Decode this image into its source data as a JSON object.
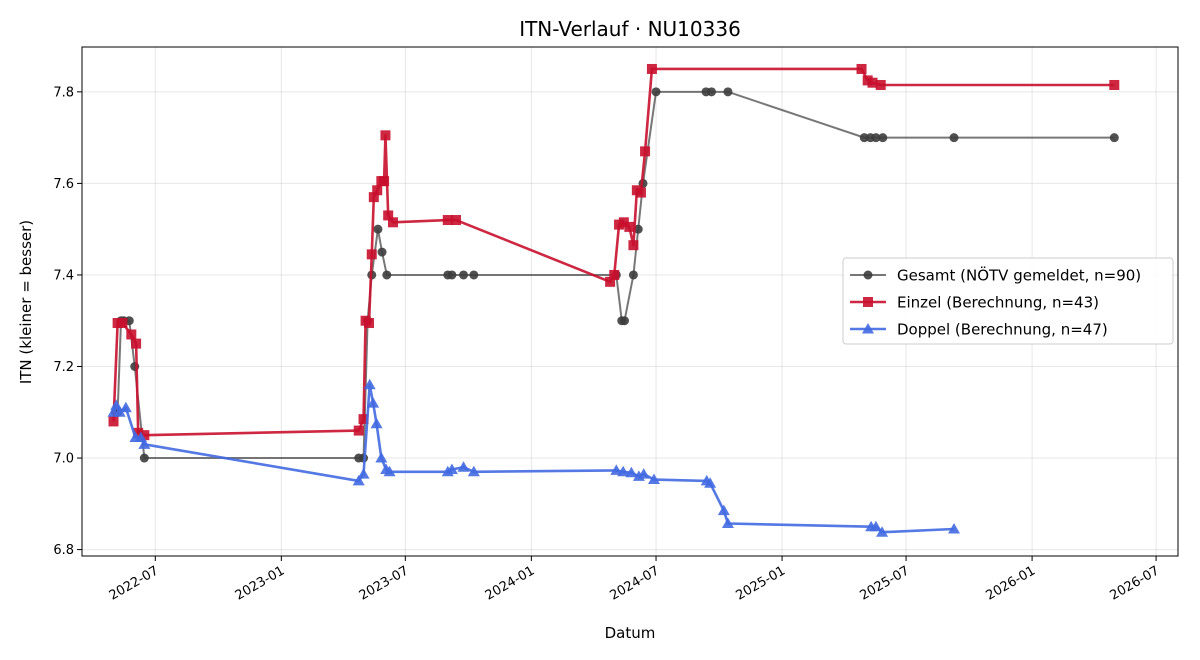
{
  "chart_data": {
    "type": "line",
    "title": "ITN-Verlauf · NU10336",
    "xlabel": "Datum",
    "ylabel": "ITN  (kleiner = besser)",
    "xlim": [
      "2022-03-16",
      "2026-08-02"
    ],
    "ylim": [
      6.786,
      7.898
    ],
    "x_ticks": [
      "2022-07",
      "2023-01",
      "2023-07",
      "2024-01",
      "2024-07",
      "2025-01",
      "2025-07",
      "2026-01",
      "2026-07"
    ],
    "y_ticks": [
      "6.8",
      "7.0",
      "7.2",
      "7.4",
      "7.6",
      "7.8"
    ],
    "grid": true,
    "legend_position": "center-right",
    "series": [
      {
        "name": "Gesamt (NÖTV gemeldet, n=90)",
        "color": "#3d3d3d",
        "marker": "circle",
        "points": [
          [
            "2022-05-04",
            7.1
          ],
          [
            "2022-05-07",
            7.1
          ],
          [
            "2022-05-12",
            7.3
          ],
          [
            "2022-05-16",
            7.3
          ],
          [
            "2022-05-24",
            7.3
          ],
          [
            "2022-06-01",
            7.2
          ],
          [
            "2022-06-15",
            7.0
          ],
          [
            "2023-04-24",
            7.0
          ],
          [
            "2023-05-01",
            7.0
          ],
          [
            "2023-05-07",
            7.3
          ],
          [
            "2023-05-13",
            7.4
          ],
          [
            "2023-05-22",
            7.5
          ],
          [
            "2023-05-28",
            7.45
          ],
          [
            "2023-06-04",
            7.4
          ],
          [
            "2023-09-01",
            7.4
          ],
          [
            "2023-09-07",
            7.4
          ],
          [
            "2023-09-24",
            7.4
          ],
          [
            "2023-10-09",
            7.4
          ],
          [
            "2024-05-04",
            7.4
          ],
          [
            "2024-05-12",
            7.3
          ],
          [
            "2024-05-16",
            7.3
          ],
          [
            "2024-05-29",
            7.4
          ],
          [
            "2024-06-05",
            7.5
          ],
          [
            "2024-06-12",
            7.6
          ],
          [
            "2024-07-01",
            7.8
          ],
          [
            "2024-09-12",
            7.8
          ],
          [
            "2024-09-20",
            7.8
          ],
          [
            "2024-10-14",
            7.8
          ],
          [
            "2025-05-01",
            7.7
          ],
          [
            "2025-05-10",
            7.7
          ],
          [
            "2025-05-18",
            7.7
          ],
          [
            "2025-05-28",
            7.7
          ],
          [
            "2025-09-09",
            7.7
          ],
          [
            "2026-05-01",
            7.7
          ]
        ]
      },
      {
        "name": "Einzel (Berechnung, n=43)",
        "color": "#c8102e",
        "marker": "square",
        "points": [
          [
            "2022-05-01",
            7.08
          ],
          [
            "2022-05-07",
            7.295
          ],
          [
            "2022-05-14",
            7.295
          ],
          [
            "2022-05-27",
            7.27
          ],
          [
            "2022-06-03",
            7.25
          ],
          [
            "2022-06-06",
            7.055
          ],
          [
            "2022-06-15",
            7.05
          ],
          [
            "2023-04-24",
            7.06
          ],
          [
            "2023-05-01",
            7.085
          ],
          [
            "2023-05-04",
            7.3
          ],
          [
            "2023-05-09",
            7.295
          ],
          [
            "2023-05-13",
            7.445
          ],
          [
            "2023-05-16",
            7.57
          ],
          [
            "2023-05-21",
            7.585
          ],
          [
            "2023-05-27",
            7.605
          ],
          [
            "2023-05-31",
            7.605
          ],
          [
            "2023-06-02",
            7.705
          ],
          [
            "2023-06-06",
            7.53
          ],
          [
            "2023-06-13",
            7.515
          ],
          [
            "2023-09-01",
            7.52
          ],
          [
            "2023-09-13",
            7.52
          ],
          [
            "2024-04-25",
            7.385
          ],
          [
            "2024-05-01",
            7.4
          ],
          [
            "2024-05-08",
            7.51
          ],
          [
            "2024-05-15",
            7.515
          ],
          [
            "2024-05-23",
            7.505
          ],
          [
            "2024-05-29",
            7.465
          ],
          [
            "2024-06-03",
            7.585
          ],
          [
            "2024-06-09",
            7.58
          ],
          [
            "2024-06-15",
            7.67
          ],
          [
            "2024-06-25",
            7.85
          ],
          [
            "2025-04-27",
            7.85
          ],
          [
            "2025-05-06",
            7.825
          ],
          [
            "2025-05-13",
            7.82
          ],
          [
            "2025-05-25",
            7.815
          ],
          [
            "2026-05-01",
            7.815
          ]
        ]
      },
      {
        "name": "Doppel (Berechnung, n=47)",
        "color": "#4169e1",
        "marker": "triangle",
        "points": [
          [
            "2022-05-01",
            7.1
          ],
          [
            "2022-05-05",
            7.115
          ],
          [
            "2022-05-10",
            7.1
          ],
          [
            "2022-05-19",
            7.11
          ],
          [
            "2022-06-02",
            7.045
          ],
          [
            "2022-06-10",
            7.045
          ],
          [
            "2022-06-15",
            7.03
          ],
          [
            "2023-04-24",
            6.95
          ],
          [
            "2023-05-01",
            6.965
          ],
          [
            "2023-05-10",
            7.16
          ],
          [
            "2023-05-15",
            7.12
          ],
          [
            "2023-05-20",
            7.075
          ],
          [
            "2023-05-27",
            7.0
          ],
          [
            "2023-06-03",
            6.975
          ],
          [
            "2023-06-08",
            6.97
          ],
          [
            "2023-09-01",
            6.97
          ],
          [
            "2023-09-07",
            6.975
          ],
          [
            "2023-09-24",
            6.98
          ],
          [
            "2023-10-09",
            6.97
          ],
          [
            "2024-05-04",
            6.973
          ],
          [
            "2024-05-14",
            6.97
          ],
          [
            "2024-05-26",
            6.968
          ],
          [
            "2024-06-06",
            6.96
          ],
          [
            "2024-06-13",
            6.965
          ],
          [
            "2024-06-28",
            6.953
          ],
          [
            "2024-09-13",
            6.95
          ],
          [
            "2024-09-18",
            6.945
          ],
          [
            "2024-10-08",
            6.885
          ],
          [
            "2024-10-14",
            6.857
          ],
          [
            "2025-05-11",
            6.85
          ],
          [
            "2025-05-18",
            6.85
          ],
          [
            "2025-05-27",
            6.838
          ],
          [
            "2025-09-09",
            6.845
          ]
        ]
      }
    ]
  }
}
